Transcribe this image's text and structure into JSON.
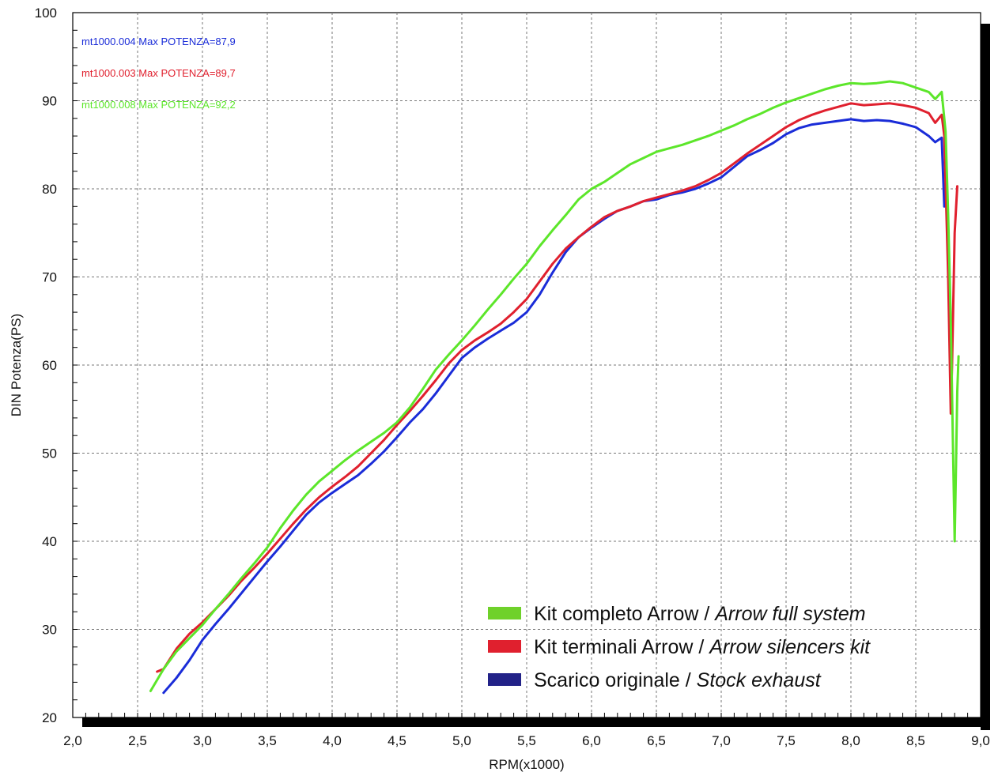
{
  "chart_data": {
    "type": "line",
    "xlabel": "RPM(x1000)",
    "ylabel": "DIN Potenza(PS)",
    "xlim": [
      2.0,
      9.0
    ],
    "ylim": [
      20,
      100
    ],
    "x_ticks": [
      "2,0",
      "2,5",
      "3,0",
      "3,5",
      "4,0",
      "4,5",
      "5,0",
      "5,5",
      "6,0",
      "6,5",
      "7,0",
      "7,5",
      "8,0",
      "8,5",
      "9,0"
    ],
    "y_ticks": [
      "20",
      "30",
      "40",
      "50",
      "60",
      "70",
      "80",
      "90",
      "100"
    ],
    "grid": true,
    "legend_position": "bottom-right",
    "max_labels": [
      {
        "text": "mt1000.004  Max POTENZA=87,9",
        "color": "#1a2cd8"
      },
      {
        "text": "mt1000.003  Max POTENZA=89,7",
        "color": "#e0202e"
      },
      {
        "text": "mt1000.008  Max POTENZA=92,2",
        "color": "#5ce62a"
      }
    ],
    "series": [
      {
        "key": "green",
        "legend": "Kit completo Arrow / ",
        "legend_italic": "Arrow full system",
        "color": "#5ce62a",
        "legend_color": "#6fd12a",
        "points": [
          [
            2.6,
            23.0
          ],
          [
            2.7,
            25.5
          ],
          [
            2.8,
            27.5
          ],
          [
            2.9,
            29.0
          ],
          [
            3.0,
            30.5
          ],
          [
            3.1,
            32.3
          ],
          [
            3.2,
            34.0
          ],
          [
            3.3,
            35.8
          ],
          [
            3.4,
            37.5
          ],
          [
            3.5,
            39.3
          ],
          [
            3.6,
            41.5
          ],
          [
            3.7,
            43.5
          ],
          [
            3.8,
            45.3
          ],
          [
            3.9,
            46.8
          ],
          [
            4.0,
            48.0
          ],
          [
            4.1,
            49.2
          ],
          [
            4.2,
            50.3
          ],
          [
            4.3,
            51.3
          ],
          [
            4.4,
            52.3
          ],
          [
            4.5,
            53.5
          ],
          [
            4.6,
            55.2
          ],
          [
            4.7,
            57.3
          ],
          [
            4.8,
            59.5
          ],
          [
            4.9,
            61.2
          ],
          [
            5.0,
            62.8
          ],
          [
            5.1,
            64.5
          ],
          [
            5.2,
            66.3
          ],
          [
            5.3,
            68.0
          ],
          [
            5.4,
            69.8
          ],
          [
            5.5,
            71.5
          ],
          [
            5.6,
            73.5
          ],
          [
            5.7,
            75.3
          ],
          [
            5.8,
            77.0
          ],
          [
            5.9,
            78.8
          ],
          [
            6.0,
            80.0
          ],
          [
            6.1,
            80.8
          ],
          [
            6.2,
            81.8
          ],
          [
            6.3,
            82.8
          ],
          [
            6.4,
            83.5
          ],
          [
            6.5,
            84.2
          ],
          [
            6.6,
            84.6
          ],
          [
            6.7,
            85.0
          ],
          [
            6.8,
            85.5
          ],
          [
            6.9,
            86.0
          ],
          [
            7.0,
            86.6
          ],
          [
            7.1,
            87.2
          ],
          [
            7.2,
            87.9
          ],
          [
            7.3,
            88.5
          ],
          [
            7.4,
            89.2
          ],
          [
            7.5,
            89.8
          ],
          [
            7.6,
            90.3
          ],
          [
            7.7,
            90.8
          ],
          [
            7.8,
            91.3
          ],
          [
            7.9,
            91.7
          ],
          [
            8.0,
            92.0
          ],
          [
            8.1,
            91.9
          ],
          [
            8.2,
            92.0
          ],
          [
            8.3,
            92.2
          ],
          [
            8.4,
            92.0
          ],
          [
            8.5,
            91.5
          ],
          [
            8.6,
            91.0
          ],
          [
            8.65,
            90.2
          ],
          [
            8.7,
            91.0
          ],
          [
            8.73,
            86.5
          ],
          [
            8.75,
            77.0
          ],
          [
            8.77,
            65.0
          ],
          [
            8.79,
            48.0
          ],
          [
            8.8,
            40.0
          ],
          [
            8.81,
            48.0
          ],
          [
            8.82,
            57.0
          ],
          [
            8.83,
            61.0
          ]
        ]
      },
      {
        "key": "red",
        "legend": "Kit terminali Arrow / ",
        "legend_italic": "Arrow silencers kit",
        "color": "#e0202e",
        "legend_color": "#e0202e",
        "points": [
          [
            2.65,
            25.2
          ],
          [
            2.7,
            25.5
          ],
          [
            2.8,
            27.8
          ],
          [
            2.9,
            29.5
          ],
          [
            3.0,
            30.8
          ],
          [
            3.1,
            32.3
          ],
          [
            3.2,
            33.8
          ],
          [
            3.3,
            35.5
          ],
          [
            3.4,
            37.0
          ],
          [
            3.5,
            38.6
          ],
          [
            3.6,
            40.3
          ],
          [
            3.7,
            42.0
          ],
          [
            3.8,
            43.6
          ],
          [
            3.9,
            45.0
          ],
          [
            4.0,
            46.2
          ],
          [
            4.1,
            47.3
          ],
          [
            4.2,
            48.5
          ],
          [
            4.3,
            50.0
          ],
          [
            4.4,
            51.5
          ],
          [
            4.5,
            53.2
          ],
          [
            4.6,
            54.8
          ],
          [
            4.7,
            56.5
          ],
          [
            4.8,
            58.3
          ],
          [
            4.9,
            60.2
          ],
          [
            5.0,
            61.7
          ],
          [
            5.1,
            62.8
          ],
          [
            5.2,
            63.7
          ],
          [
            5.3,
            64.7
          ],
          [
            5.4,
            66.0
          ],
          [
            5.5,
            67.5
          ],
          [
            5.6,
            69.5
          ],
          [
            5.7,
            71.5
          ],
          [
            5.8,
            73.2
          ],
          [
            5.9,
            74.5
          ],
          [
            6.0,
            75.7
          ],
          [
            6.1,
            76.8
          ],
          [
            6.2,
            77.5
          ],
          [
            6.3,
            78.0
          ],
          [
            6.4,
            78.6
          ],
          [
            6.5,
            79.0
          ],
          [
            6.6,
            79.4
          ],
          [
            6.7,
            79.8
          ],
          [
            6.8,
            80.3
          ],
          [
            6.9,
            81.0
          ],
          [
            7.0,
            81.8
          ],
          [
            7.1,
            82.9
          ],
          [
            7.2,
            84.0
          ],
          [
            7.3,
            85.0
          ],
          [
            7.4,
            86.0
          ],
          [
            7.5,
            87.0
          ],
          [
            7.6,
            87.8
          ],
          [
            7.7,
            88.4
          ],
          [
            7.8,
            88.9
          ],
          [
            7.9,
            89.3
          ],
          [
            8.0,
            89.7
          ],
          [
            8.1,
            89.5
          ],
          [
            8.2,
            89.6
          ],
          [
            8.3,
            89.7
          ],
          [
            8.4,
            89.5
          ],
          [
            8.5,
            89.2
          ],
          [
            8.6,
            88.6
          ],
          [
            8.65,
            87.5
          ],
          [
            8.7,
            88.4
          ],
          [
            8.72,
            86.0
          ],
          [
            8.75,
            70.0
          ],
          [
            8.77,
            54.5
          ],
          [
            8.78,
            60.0
          ],
          [
            8.8,
            75.0
          ],
          [
            8.82,
            80.3
          ]
        ]
      },
      {
        "key": "blue",
        "legend": "Scarico originale / ",
        "legend_italic": "Stock exhaust",
        "color": "#1a2cd8",
        "legend_color": "#222288",
        "points": [
          [
            2.7,
            22.8
          ],
          [
            2.8,
            24.5
          ],
          [
            2.9,
            26.5
          ],
          [
            3.0,
            28.8
          ],
          [
            3.1,
            30.6
          ],
          [
            3.2,
            32.3
          ],
          [
            3.3,
            34.1
          ],
          [
            3.4,
            35.9
          ],
          [
            3.5,
            37.7
          ],
          [
            3.6,
            39.4
          ],
          [
            3.7,
            41.2
          ],
          [
            3.8,
            43.0
          ],
          [
            3.9,
            44.4
          ],
          [
            4.0,
            45.5
          ],
          [
            4.1,
            46.5
          ],
          [
            4.2,
            47.5
          ],
          [
            4.3,
            48.8
          ],
          [
            4.4,
            50.2
          ],
          [
            4.5,
            51.8
          ],
          [
            4.6,
            53.5
          ],
          [
            4.7,
            55.0
          ],
          [
            4.8,
            56.8
          ],
          [
            4.9,
            58.8
          ],
          [
            5.0,
            60.8
          ],
          [
            5.1,
            62.0
          ],
          [
            5.2,
            63.0
          ],
          [
            5.3,
            63.9
          ],
          [
            5.4,
            64.8
          ],
          [
            5.5,
            66.0
          ],
          [
            5.6,
            68.0
          ],
          [
            5.7,
            70.5
          ],
          [
            5.8,
            72.8
          ],
          [
            5.9,
            74.5
          ],
          [
            6.0,
            75.6
          ],
          [
            6.1,
            76.6
          ],
          [
            6.2,
            77.5
          ],
          [
            6.3,
            78.0
          ],
          [
            6.4,
            78.6
          ],
          [
            6.5,
            78.8
          ],
          [
            6.6,
            79.3
          ],
          [
            6.7,
            79.6
          ],
          [
            6.8,
            80.0
          ],
          [
            6.9,
            80.6
          ],
          [
            7.0,
            81.3
          ],
          [
            7.1,
            82.5
          ],
          [
            7.2,
            83.7
          ],
          [
            7.3,
            84.4
          ],
          [
            7.4,
            85.2
          ],
          [
            7.5,
            86.2
          ],
          [
            7.6,
            86.9
          ],
          [
            7.7,
            87.3
          ],
          [
            7.8,
            87.5
          ],
          [
            7.9,
            87.7
          ],
          [
            8.0,
            87.9
          ],
          [
            8.1,
            87.7
          ],
          [
            8.2,
            87.8
          ],
          [
            8.3,
            87.7
          ],
          [
            8.4,
            87.4
          ],
          [
            8.5,
            87.0
          ],
          [
            8.6,
            86.0
          ],
          [
            8.65,
            85.3
          ],
          [
            8.7,
            85.8
          ],
          [
            8.72,
            78.0
          ]
        ]
      }
    ]
  }
}
